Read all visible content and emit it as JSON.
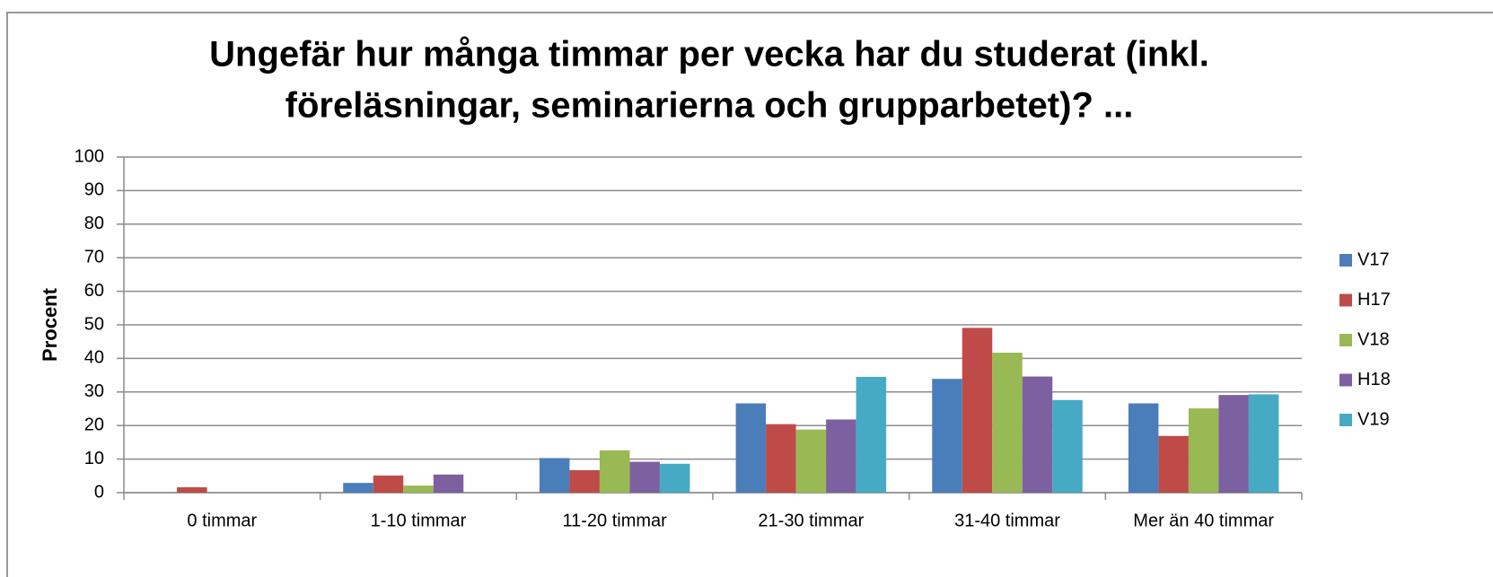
{
  "chart_data": {
    "type": "bar",
    "title": [
      "Ungefär hur många timmar per vecka har du studerat (inkl.",
      "föreläsningar, seminarierna och grupparbetet)? ..."
    ],
    "y_label": "Procent",
    "categories": [
      "0 timmar",
      "1-10 timmar",
      "11-20 timmar",
      "21-30 timmar",
      "31-40 timmar",
      "Mer än 40 timmar"
    ],
    "series": [
      {
        "name": "V17",
        "color": "#4a7ebb",
        "values": [
          0,
          2.9,
          10.3,
          26.6,
          33.9,
          26.6
        ]
      },
      {
        "name": "H17",
        "color": "#be4b48",
        "values": [
          1.6,
          5.1,
          6.7,
          20.4,
          49.1,
          16.9
        ]
      },
      {
        "name": "V18",
        "color": "#98b954",
        "values": [
          0,
          2.1,
          12.6,
          18.8,
          41.7,
          25.1
        ]
      },
      {
        "name": "H18",
        "color": "#7d60a0",
        "values": [
          0,
          5.4,
          9.2,
          21.8,
          34.6,
          29.1
        ]
      },
      {
        "name": "V19",
        "color": "#46aac5",
        "values": [
          0,
          0,
          8.6,
          34.5,
          27.6,
          29.3
        ]
      }
    ],
    "ylim": [
      0,
      100
    ],
    "yticks": [
      0,
      10,
      20,
      30,
      40,
      50,
      60,
      70,
      80,
      90,
      100
    ],
    "grid": true,
    "legend": "right"
  }
}
